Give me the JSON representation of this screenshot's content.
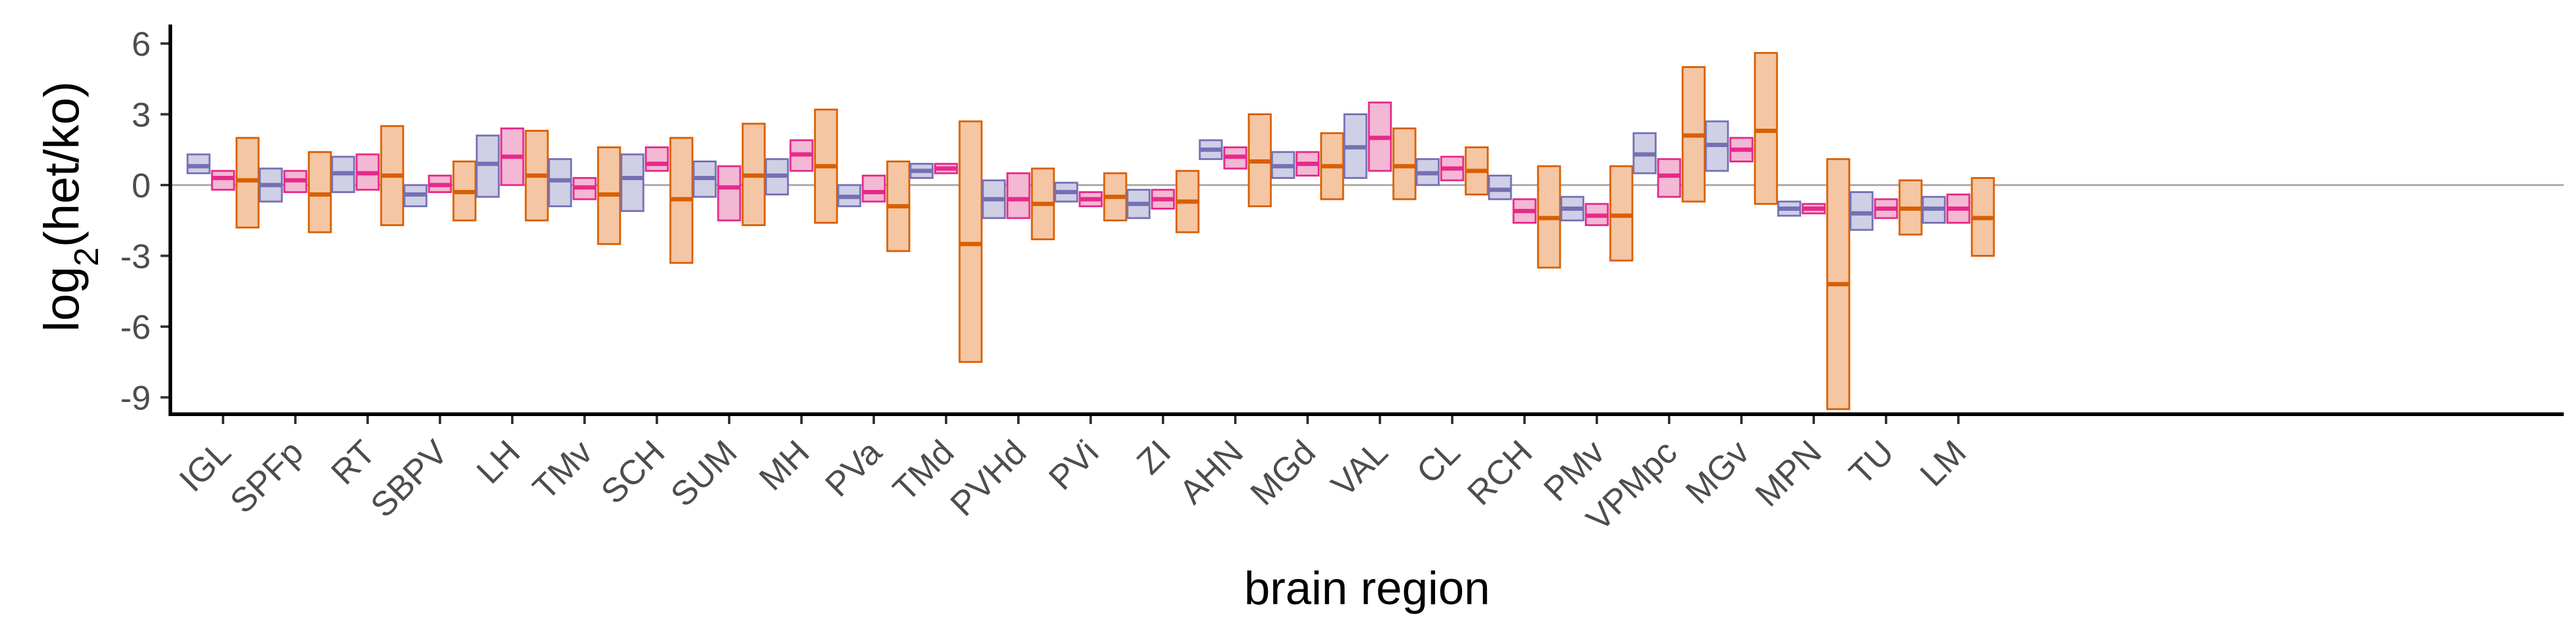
{
  "chart_data": {
    "type": "boxplot",
    "xlabel": "brain region",
    "ylabel_base": "log",
    "ylabel_subscript": "2",
    "ylabel_arg": "(het/ko)",
    "ylim": [
      -9.5,
      6.5
    ],
    "yticks": [
      6,
      3,
      0,
      -3,
      -6,
      -9
    ],
    "ytick_labels": [
      "6",
      "3",
      "0",
      "-3",
      "-6",
      "-9"
    ],
    "reference_line_y": 0,
    "grid": false,
    "categories": [
      "IGL",
      "SPFp",
      "RT",
      "SBPV",
      "LH",
      "TMv",
      "SCH",
      "SUM",
      "MH",
      "PVa",
      "TMd",
      "PVHd",
      "PVi",
      "ZI",
      "AHN",
      "MGd",
      "VAL",
      "CL",
      "RCH",
      "PMv",
      "VPMpc",
      "MGv",
      "MPN",
      "TU",
      "LM"
    ],
    "series": [
      {
        "fill": "#cfcfe6",
        "stroke": "#7570b3",
        "boxes": [
          [
            0.5,
            0.8,
            1.3
          ],
          [
            -0.7,
            0.0,
            0.7
          ],
          [
            -0.3,
            0.5,
            1.2
          ],
          [
            -0.9,
            -0.4,
            0.0
          ],
          [
            -0.5,
            0.9,
            2.1
          ],
          [
            -0.9,
            0.2,
            1.1
          ],
          [
            -1.1,
            0.3,
            1.3
          ],
          [
            -0.5,
            0.3,
            1.0
          ],
          [
            -0.4,
            0.4,
            1.1
          ],
          [
            -0.9,
            -0.5,
            0.0
          ],
          [
            0.3,
            0.6,
            0.9
          ],
          [
            -1.4,
            -0.6,
            0.2
          ],
          [
            -0.7,
            -0.3,
            0.1
          ],
          [
            -1.4,
            -0.8,
            -0.2
          ],
          [
            1.1,
            1.5,
            1.9
          ],
          [
            0.3,
            0.8,
            1.4
          ],
          [
            0.3,
            1.6,
            3.0
          ],
          [
            0.0,
            0.5,
            1.1
          ],
          [
            -0.6,
            -0.2,
            0.4
          ],
          [
            -1.5,
            -1.0,
            -0.5
          ],
          [
            0.5,
            1.3,
            2.2
          ],
          [
            0.6,
            1.7,
            2.7
          ],
          [
            -1.3,
            -1.0,
            -0.7
          ],
          [
            -1.9,
            -1.2,
            -0.3
          ],
          [
            -1.6,
            -1.0,
            -0.5
          ]
        ]
      },
      {
        "fill": "#f2b8d4",
        "stroke": "#e7298a",
        "boxes": [
          [
            -0.2,
            0.3,
            0.6
          ],
          [
            -0.3,
            0.2,
            0.6
          ],
          [
            -0.2,
            0.5,
            1.3
          ],
          [
            -0.3,
            0.0,
            0.4
          ],
          [
            0.0,
            1.2,
            2.4
          ],
          [
            -0.6,
            -0.1,
            0.3
          ],
          [
            0.6,
            0.9,
            1.6
          ],
          [
            -1.5,
            -0.1,
            0.8
          ],
          [
            0.6,
            1.3,
            1.9
          ],
          [
            -0.7,
            -0.3,
            0.4
          ],
          [
            0.5,
            0.7,
            0.9
          ],
          [
            -1.4,
            -0.6,
            0.5
          ],
          [
            -0.9,
            -0.6,
            -0.3
          ],
          [
            -1.0,
            -0.6,
            -0.2
          ],
          [
            0.7,
            1.2,
            1.6
          ],
          [
            0.4,
            0.9,
            1.4
          ],
          [
            0.6,
            2.0,
            3.5
          ],
          [
            0.2,
            0.7,
            1.2
          ],
          [
            -1.6,
            -1.1,
            -0.6
          ],
          [
            -1.7,
            -1.3,
            -0.8
          ],
          [
            -0.5,
            0.4,
            1.1
          ],
          [
            1.0,
            1.5,
            2.0
          ],
          [
            -1.2,
            -1.0,
            -0.8
          ],
          [
            -1.4,
            -1.0,
            -0.6
          ],
          [
            -1.6,
            -1.0,
            -0.4
          ]
        ]
      },
      {
        "fill": "#f5c6a3",
        "stroke": "#d95f02",
        "boxes": [
          [
            -1.8,
            0.2,
            2.0
          ],
          [
            -2.0,
            -0.4,
            1.4
          ],
          [
            -1.7,
            0.4,
            2.5
          ],
          [
            -1.5,
            -0.3,
            1.0
          ],
          [
            -1.5,
            0.4,
            2.3
          ],
          [
            -2.5,
            -0.4,
            1.6
          ],
          [
            -3.3,
            -0.6,
            2.0
          ],
          [
            -1.7,
            0.4,
            2.6
          ],
          [
            -1.6,
            0.8,
            3.2
          ],
          [
            -2.8,
            -0.9,
            1.0
          ],
          [
            -7.5,
            -2.5,
            2.7
          ],
          [
            -2.3,
            -0.8,
            0.7
          ],
          [
            -1.5,
            -0.5,
            0.5
          ],
          [
            -2.0,
            -0.7,
            0.6
          ],
          [
            -0.9,
            1.0,
            3.0
          ],
          [
            -0.6,
            0.8,
            2.2
          ],
          [
            -0.6,
            0.8,
            2.4
          ],
          [
            -0.4,
            0.6,
            1.6
          ],
          [
            -3.5,
            -1.4,
            0.8
          ],
          [
            -3.2,
            -1.3,
            0.8
          ],
          [
            -0.7,
            2.1,
            5.0
          ],
          [
            -0.8,
            2.3,
            5.6
          ],
          [
            -9.5,
            -4.2,
            1.1
          ],
          [
            -2.1,
            -1.0,
            0.2
          ],
          [
            -3.0,
            -1.4,
            0.3
          ]
        ]
      }
    ]
  }
}
